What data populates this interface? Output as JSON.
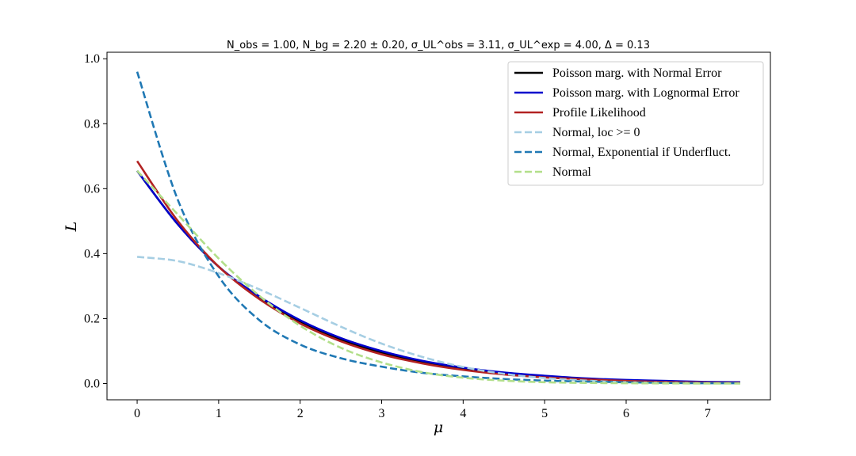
{
  "chart_data": {
    "type": "line",
    "title": "N_obs = 1.00, N_bg = 2.20 ± 0.20, σ_UL^obs = 3.11, σ_UL^exp = 4.00, Δ = 0.13",
    "xlabel": "μ",
    "ylabel": "L",
    "xlim": [
      -0.37,
      7.77
    ],
    "ylim": [
      -0.05,
      1.02
    ],
    "xticks": [
      0,
      1,
      2,
      3,
      4,
      5,
      6,
      7
    ],
    "yticks": [
      0.0,
      0.2,
      0.4,
      0.6,
      0.8,
      1.0
    ],
    "ytick_labels": [
      "0.0",
      "0.2",
      "0.4",
      "0.6",
      "0.8",
      "1.0"
    ],
    "grid": false,
    "legend_position": "top-right",
    "x": [
      0,
      0.5,
      1,
      1.5,
      2,
      2.5,
      3,
      3.5,
      4,
      4.5,
      5,
      5.5,
      6,
      6.5,
      7,
      7.4
    ],
    "series": [
      {
        "name": "Poisson marg. with Normal Error",
        "color": "#000000",
        "dash": "solid",
        "values": [
          0.655,
          0.49,
          0.36,
          0.265,
          0.19,
          0.135,
          0.095,
          0.065,
          0.045,
          0.031,
          0.021,
          0.014,
          0.009,
          0.006,
          0.004,
          0.003
        ]
      },
      {
        "name": "Poisson marg. with Lognormal Error",
        "color": "#0000cc",
        "dash": "solid",
        "values": [
          0.655,
          0.49,
          0.36,
          0.268,
          0.195,
          0.14,
          0.1,
          0.07,
          0.049,
          0.034,
          0.024,
          0.016,
          0.011,
          0.008,
          0.005,
          0.004
        ]
      },
      {
        "name": "Profile Likelihood",
        "color": "#b22222",
        "dash": "solid",
        "values": [
          0.685,
          0.5,
          0.36,
          0.26,
          0.185,
          0.13,
          0.09,
          0.062,
          0.042,
          0.028,
          0.019,
          0.013,
          0.008,
          0.005,
          0.003,
          0.002
        ]
      },
      {
        "name": "Normal, loc >= 0",
        "color": "#a6cee3",
        "dash": "dashed",
        "values": [
          0.39,
          0.377,
          0.34,
          0.29,
          0.233,
          0.175,
          0.123,
          0.082,
          0.051,
          0.03,
          0.017,
          0.009,
          0.004,
          0.002,
          0.001,
          0.0005
        ]
      },
      {
        "name": "Normal, Exponential if Underfluct.",
        "color": "#1f78b4",
        "dash": "dashed",
        "values": [
          0.96,
          0.565,
          0.33,
          0.195,
          0.12,
          0.078,
          0.052,
          0.033,
          0.022,
          0.014,
          0.009,
          0.006,
          0.004,
          0.002,
          0.001,
          0.001
        ]
      },
      {
        "name": "Normal",
        "color": "#b2df8a",
        "dash": "dashed",
        "values": [
          0.655,
          0.52,
          0.385,
          0.27,
          0.178,
          0.11,
          0.065,
          0.035,
          0.018,
          0.009,
          0.004,
          0.002,
          0.001,
          0.0004,
          0.0001,
          0.0
        ]
      }
    ]
  }
}
